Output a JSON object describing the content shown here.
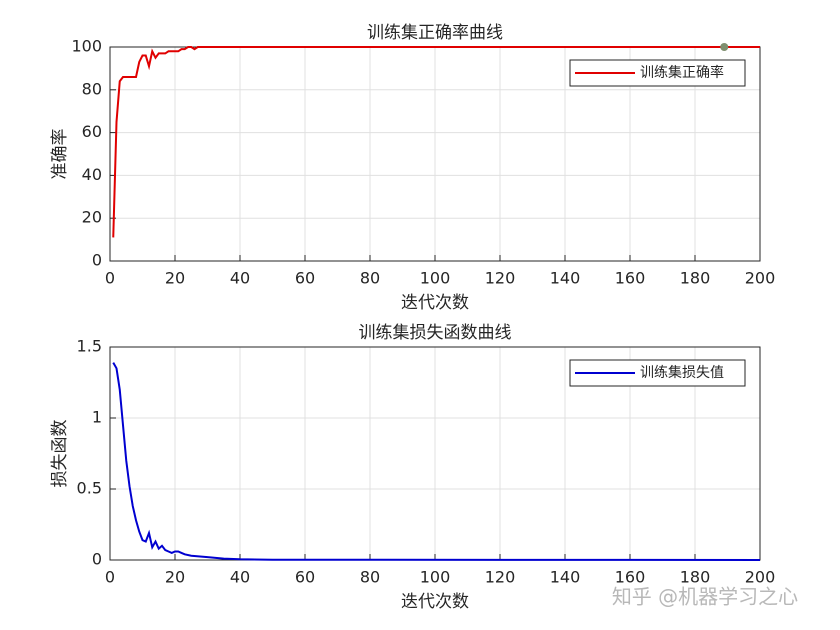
{
  "chart_data": [
    {
      "type": "line",
      "title": "训练集正确率曲线",
      "xlabel": "迭代次数",
      "ylabel": "准确率",
      "x": [
        1,
        2,
        3,
        4,
        5,
        6,
        7,
        8,
        9,
        10,
        11,
        12,
        13,
        14,
        15,
        16,
        17,
        18,
        19,
        20,
        21,
        22,
        23,
        24,
        25,
        26,
        27,
        200
      ],
      "series": [
        {
          "name": "训练集正确率",
          "color": "#e00000",
          "values": [
            11,
            65,
            84,
            86,
            86,
            86,
            86,
            86,
            93,
            96,
            96,
            91,
            98,
            95,
            97,
            97,
            97,
            98,
            98,
            98,
            98,
            99,
            99,
            100,
            100,
            99,
            100,
            100
          ]
        }
      ],
      "highlight": {
        "x": 189,
        "y": 100,
        "color": "#7f8f6f"
      },
      "xlim": [
        0,
        200
      ],
      "xticks": [
        0,
        20,
        40,
        60,
        80,
        100,
        120,
        140,
        160,
        180,
        200
      ],
      "ylim": [
        0,
        100
      ],
      "yticks": [
        0,
        20,
        40,
        60,
        80,
        100
      ],
      "grid": true,
      "legend": "northeast"
    },
    {
      "type": "line",
      "title": "训练集损失函数曲线",
      "xlabel": "迭代次数",
      "ylabel": "损失函数",
      "x": [
        1,
        2,
        3,
        4,
        5,
        6,
        7,
        8,
        9,
        10,
        11,
        12,
        13,
        14,
        15,
        16,
        17,
        18,
        19,
        20,
        21,
        22,
        23,
        25,
        30,
        35,
        40,
        50,
        200
      ],
      "series": [
        {
          "name": "训练集损失值",
          "color": "#0000d0",
          "values": [
            1.39,
            1.35,
            1.2,
            0.95,
            0.7,
            0.52,
            0.38,
            0.28,
            0.2,
            0.14,
            0.13,
            0.19,
            0.09,
            0.13,
            0.08,
            0.1,
            0.07,
            0.06,
            0.05,
            0.06,
            0.06,
            0.05,
            0.04,
            0.03,
            0.02,
            0.01,
            0.005,
            0.002,
            0
          ]
        }
      ],
      "xlim": [
        0,
        200
      ],
      "xticks": [
        0,
        20,
        40,
        60,
        80,
        100,
        120,
        140,
        160,
        180,
        200
      ],
      "ylim": [
        0,
        1.5
      ],
      "yticks": [
        0,
        0.5,
        1,
        1.5
      ],
      "grid": true,
      "legend": "northeast"
    }
  ],
  "watermark": "知乎 @机器学习之心"
}
